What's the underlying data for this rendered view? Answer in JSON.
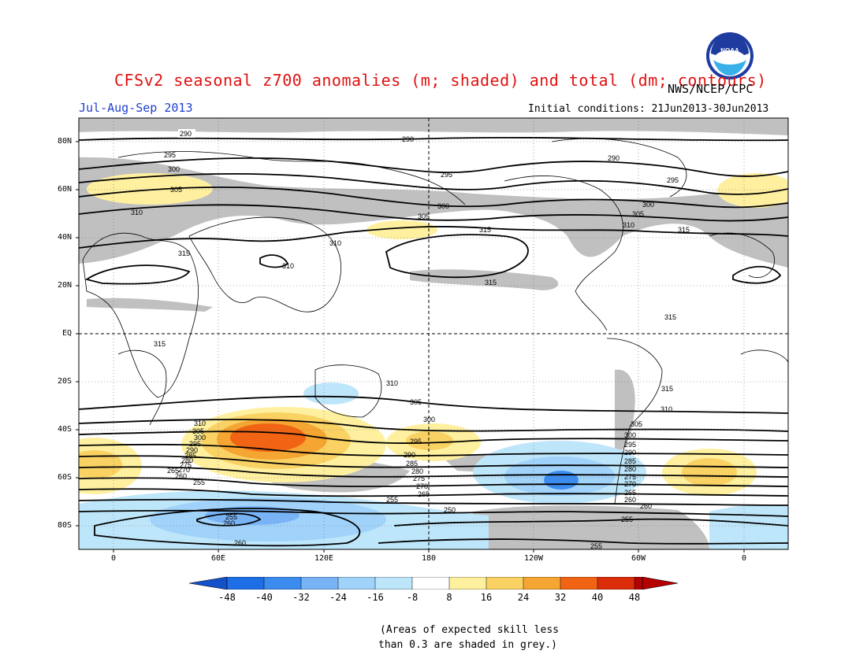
{
  "header": {
    "title": "CFSv2 seasonal z700 anomalies (m; shaded) and total (dm; contours)",
    "period": "Jul-Aug-Sep 2013",
    "agency": "NWS/NCEP/CPC",
    "initial_conditions": "Initial conditions: 21Jun2013-30Jun2013",
    "logo_text": "NOAA"
  },
  "map": {
    "lat_labels": [
      "80N",
      "60N",
      "40N",
      "20N",
      "EQ",
      "20S",
      "40S",
      "60S",
      "80S"
    ],
    "lon_labels": [
      "0",
      "60E",
      "120E",
      "180",
      "120W",
      "60W",
      "0"
    ],
    "contour_labels": [
      "290",
      "290",
      "295",
      "300",
      "305",
      "310",
      "315",
      "310",
      "295",
      "290",
      "295",
      "300",
      "305",
      "310",
      "315",
      "315",
      "310",
      "315",
      "315",
      "310",
      "305",
      "300",
      "295",
      "290",
      "285",
      "280",
      "275",
      "270",
      "265",
      "260",
      "255",
      "250",
      "255",
      "260",
      "255",
      "260",
      "310",
      "305",
      "300",
      "295",
      "290",
      "285",
      "280",
      "275",
      "270",
      "265",
      "260",
      "255",
      "260",
      "315",
      "310",
      "305",
      "300",
      "295",
      "290",
      "285",
      "280",
      "275",
      "270",
      "265",
      "260",
      "255",
      "260",
      "255"
    ],
    "colors": {
      "neg_48": "#1450c8",
      "neg_40": "#1e6ee6",
      "neg_32": "#3c8cf0",
      "neg_24": "#78b4f5",
      "neg_16": "#a0d2fa",
      "neg_8": "#bee6fa",
      "zero": "#ffffff",
      "pos_8": "#fff0a0",
      "pos_16": "#fad264",
      "pos_24": "#f5a532",
      "pos_32": "#f06414",
      "pos_40": "#dc2d0a",
      "pos_48": "#b40000",
      "low_skill_grey": "#c0c0c0"
    }
  },
  "colorbar": {
    "labels": [
      "-48",
      "-40",
      "-32",
      "-24",
      "-16",
      "-8",
      "8",
      "16",
      "24",
      "32",
      "40",
      "48"
    ]
  },
  "note": {
    "line1": "(Areas of expected skill less",
    "line2": "than 0.3 are shaded in grey.)"
  }
}
